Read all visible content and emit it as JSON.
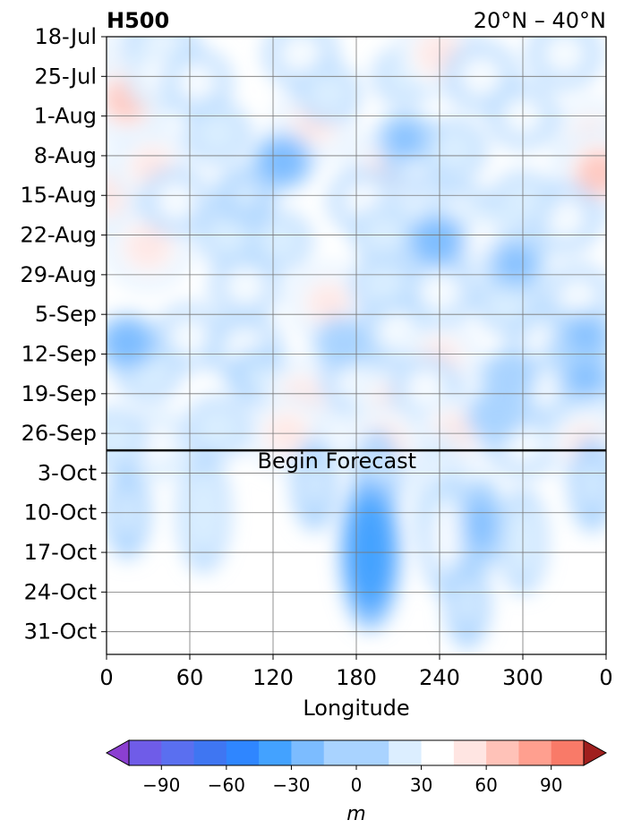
{
  "chart_data": {
    "type": "heatmap",
    "title_left": "H500",
    "title_right": "20°N – 40°N",
    "xlabel": "Longitude",
    "x_ticks": [
      "0",
      "60",
      "120",
      "180",
      "240",
      "300",
      "0"
    ],
    "x_tick_values": [
      0,
      60,
      120,
      180,
      240,
      300,
      360
    ],
    "xlim": [
      0,
      360
    ],
    "y_ticks": [
      "18-Jul",
      "25-Jul",
      "1-Aug",
      "8-Aug",
      "15-Aug",
      "22-Aug",
      "29-Aug",
      "5-Sep",
      "12-Sep",
      "19-Sep",
      "26-Sep",
      "3-Oct",
      "10-Oct",
      "17-Oct",
      "24-Oct",
      "31-Oct"
    ],
    "y_range": [
      "18-Jul",
      "4-Nov"
    ],
    "y_inverted": true,
    "grid": true,
    "forecast_line_date": "29-Sep",
    "annotation": "Begin Forecast",
    "colorbar": {
      "label": "m",
      "ticks": [
        -90,
        -60,
        -30,
        0,
        30,
        60,
        90
      ],
      "levels": [
        -105,
        -90,
        -75,
        -60,
        -45,
        -30,
        -15,
        15,
        30,
        45,
        60,
        75,
        90,
        105
      ],
      "colors": [
        "#8b3fd1",
        "#6f5ce8",
        "#5a6ff0",
        "#3f76f2",
        "#2f86ff",
        "#43a2ff",
        "#7cbcff",
        "#a9d3ff",
        "#dceeff",
        "#ffffff",
        "#ffe5e2",
        "#ffc2b8",
        "#ff9f8f",
        "#f97a68",
        "#f35b48",
        "#e3493a",
        "#cf3a30",
        "#b82a26",
        "#a01f1e"
      ],
      "extend": "both"
    },
    "anomaly_field": {
      "units": "m",
      "blobs": [
        {
          "lon": 10,
          "date": "25-Jul",
          "value": 55
        },
        {
          "lon": 0,
          "date": "15-Aug",
          "value": 45
        },
        {
          "lon": 15,
          "date": "29-Jul",
          "value": 60
        },
        {
          "lon": 40,
          "date": "20-Jul",
          "value": 35
        },
        {
          "lon": 40,
          "date": "25-Jul",
          "value": 38
        },
        {
          "lon": 65,
          "date": "26-Jul",
          "value": 30
        },
        {
          "lon": 80,
          "date": "4-Aug",
          "value": 25
        },
        {
          "lon": 33,
          "date": "10-Aug",
          "value": 45
        },
        {
          "lon": 30,
          "date": "24-Aug",
          "value": 55
        },
        {
          "lon": 50,
          "date": "16-Aug",
          "value": 30
        },
        {
          "lon": 90,
          "date": "22-Aug",
          "value": 28
        },
        {
          "lon": 100,
          "date": "15-Aug",
          "value": 20
        },
        {
          "lon": 140,
          "date": "21-Jul",
          "value": 35
        },
        {
          "lon": 150,
          "date": "2-Aug",
          "value": 48
        },
        {
          "lon": 215,
          "date": "25-Jul",
          "value": 22
        },
        {
          "lon": 160,
          "date": "28-Jul",
          "value": 22
        },
        {
          "lon": 200,
          "date": "11-Aug",
          "value": 45
        },
        {
          "lon": 225,
          "date": "8-Aug",
          "value": 35
        },
        {
          "lon": 185,
          "date": "16-Aug",
          "value": 30
        },
        {
          "lon": 240,
          "date": "21-Jul",
          "value": 55
        },
        {
          "lon": 270,
          "date": "25-Jul",
          "value": 35
        },
        {
          "lon": 300,
          "date": "1-Aug",
          "value": 30
        },
        {
          "lon": 330,
          "date": "21-Jul",
          "value": 35
        },
        {
          "lon": 350,
          "date": "5-Aug",
          "value": 45
        },
        {
          "lon": 355,
          "date": "11-Aug",
          "value": 60
        },
        {
          "lon": 330,
          "date": "19-Aug",
          "value": 35
        },
        {
          "lon": 300,
          "date": "16-Aug",
          "value": 22
        },
        {
          "lon": 250,
          "date": "7-Aug",
          "value": 25
        },
        {
          "lon": 255,
          "date": "19-Aug",
          "value": 35
        },
        {
          "lon": 270,
          "date": "23-Aug",
          "value": 38
        },
        {
          "lon": 220,
          "date": "21-Aug",
          "value": 40
        },
        {
          "lon": 200,
          "date": "22-Aug",
          "value": 22
        },
        {
          "lon": 240,
          "date": "1-Sep",
          "value": 35
        },
        {
          "lon": 290,
          "date": "3-Sep",
          "value": 25
        },
        {
          "lon": 340,
          "date": "2-Sep",
          "value": 30
        },
        {
          "lon": 100,
          "date": "31-Aug",
          "value": 30
        },
        {
          "lon": 160,
          "date": "3-Sep",
          "value": 45
        },
        {
          "lon": 200,
          "date": "31-Aug",
          "value": 25
        },
        {
          "lon": 125,
          "date": "23-Aug",
          "value": 22
        },
        {
          "lon": 60,
          "date": "9-Sep",
          "value": 30
        },
        {
          "lon": 30,
          "date": "15-Sep",
          "value": 25
        },
        {
          "lon": 100,
          "date": "11-Sep",
          "value": 35
        },
        {
          "lon": 110,
          "date": "16-Sep",
          "value": 20
        },
        {
          "lon": 210,
          "date": "8-Sep",
          "value": 30
        },
        {
          "lon": 240,
          "date": "13-Sep",
          "value": 45
        },
        {
          "lon": 315,
          "date": "10-Sep",
          "value": 30
        },
        {
          "lon": 340,
          "date": "12-Sep",
          "value": 25
        },
        {
          "lon": 140,
          "date": "20-Sep",
          "value": 50
        },
        {
          "lon": 180,
          "date": "17-Sep",
          "value": 30
        },
        {
          "lon": 205,
          "date": "21-Sep",
          "value": 45
        },
        {
          "lon": 230,
          "date": "18-Sep",
          "value": 30
        },
        {
          "lon": 320,
          "date": "18-Sep",
          "value": 30
        },
        {
          "lon": 350,
          "date": "22-Sep",
          "value": 35
        },
        {
          "lon": 35,
          "date": "28-Sep",
          "value": 40
        },
        {
          "lon": 80,
          "date": "25-Sep",
          "value": 25
        },
        {
          "lon": 130,
          "date": "26-Sep",
          "value": 45
        },
        {
          "lon": 200,
          "date": "28-Sep",
          "value": 55
        },
        {
          "lon": 250,
          "date": "26-Sep",
          "value": 45
        },
        {
          "lon": 300,
          "date": "28-Sep",
          "value": 30
        },
        {
          "lon": 345,
          "date": "28-Sep",
          "value": 45
        },
        {
          "lon": 5,
          "date": "27-Sep",
          "value": 25
        },
        {
          "lon": 15,
          "date": "10-Sep",
          "value": -22
        },
        {
          "lon": 127,
          "date": "9-Aug",
          "value": -22
        },
        {
          "lon": 238,
          "date": "23-Aug",
          "value": -22
        },
        {
          "lon": 295,
          "date": "27-Aug",
          "value": -20
        },
        {
          "lon": 345,
          "date": "9-Sep",
          "value": -20
        },
        {
          "lon": 345,
          "date": "16-Sep",
          "value": -18
        },
        {
          "lon": 215,
          "date": "5-Aug",
          "value": -16
        },
        {
          "lon": 170,
          "date": "10-Sep",
          "value": -15
        },
        {
          "lon": 290,
          "date": "16-Sep",
          "value": -15
        },
        {
          "lon": 280,
          "date": "23-Sep",
          "value": -15
        },
        {
          "lon": 240,
          "date": "8-Oct",
          "value": 40
        },
        {
          "lon": 245,
          "date": "14-Oct",
          "value": 30
        },
        {
          "lon": 195,
          "date": "4-Oct",
          "value": 20
        },
        {
          "lon": 150,
          "date": "5-Oct",
          "value": 17
        },
        {
          "lon": 70,
          "date": "10-Oct",
          "value": 28
        },
        {
          "lon": 15,
          "date": "10-Oct",
          "value": 17
        },
        {
          "lon": 300,
          "date": "15-Oct",
          "value": 22
        },
        {
          "lon": 350,
          "date": "5-Oct",
          "value": 18
        },
        {
          "lon": 190,
          "date": "17-Oct",
          "value": -45
        },
        {
          "lon": 270,
          "date": "12-Oct",
          "value": -18
        },
        {
          "lon": 260,
          "date": "26-Oct",
          "value": 16
        }
      ]
    }
  }
}
